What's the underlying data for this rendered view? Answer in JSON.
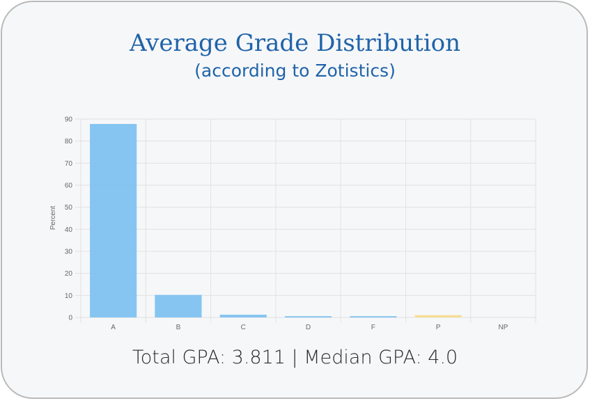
{
  "header": {
    "title": "Average Grade Distribution",
    "subtitle": "(according to Zotistics)"
  },
  "footer": {
    "text": "Total GPA: 3.811 | Median GPA: 4.0"
  },
  "colors": {
    "title": "#1f63a8",
    "bar_grade": "#7fc2f0",
    "bar_pass": "#f6dc94",
    "grid": "#e2e2e2"
  },
  "chart_data": {
    "type": "bar",
    "title": "",
    "xlabel": "",
    "ylabel": "Percent",
    "ylim": [
      0,
      90
    ],
    "yticks": [
      0,
      10,
      20,
      30,
      40,
      50,
      60,
      70,
      80,
      90
    ],
    "categories": [
      "A",
      "B",
      "C",
      "D",
      "F",
      "P",
      "NP"
    ],
    "values": [
      87.5,
      10,
      1,
      0.3,
      0.3,
      0.8,
      0
    ],
    "bar_colors": [
      "#7fc2f0",
      "#7fc2f0",
      "#7fc2f0",
      "#7fc2f0",
      "#7fc2f0",
      "#f6dc94",
      "#f6dc94"
    ],
    "grid": true,
    "legend": "none"
  }
}
